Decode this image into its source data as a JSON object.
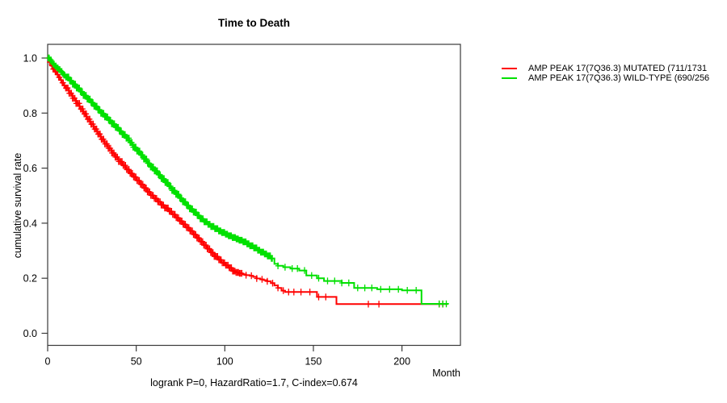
{
  "title": "Time to Death",
  "y_axis": {
    "label": "cumulative survival rate",
    "tick_labels": [
      "1.0",
      "0.8",
      "0.6",
      "0.4",
      "0.2",
      "0.0"
    ]
  },
  "x_axis": {
    "label": "Month",
    "tick_labels": [
      "0",
      "50",
      "100",
      "150",
      "200"
    ]
  },
  "footer": "logrank P=0, HazardRatio=1.7, C-index=0.674",
  "legend": {
    "items": [
      {
        "label": "AMP PEAK 17(7Q36.3) MUTATED (711/1731",
        "color": "#ff0000"
      },
      {
        "label": "AMP PEAK 17(7Q36.3) WILD-TYPE (690/256",
        "color": "#00e000"
      }
    ]
  },
  "colors": {
    "mutated": "#ff0000",
    "wild_type": "#00e000",
    "axis": "#3a3a3a"
  },
  "chart_data": {
    "type": "line",
    "subtype": "kaplan-meier-step",
    "title": "Time to Death",
    "xlabel": "Month",
    "ylabel": "cumulative survival rate",
    "xlim": [
      0,
      233
    ],
    "ylim": [
      0,
      1.0
    ],
    "x_ticks": [
      0,
      50,
      100,
      150,
      200
    ],
    "y_ticks": [
      1.0,
      0.8,
      0.6,
      0.4,
      0.2,
      0.0
    ],
    "grid": false,
    "legend_position": "outside-right",
    "annotation": "logrank P=0, HazardRatio=1.7, C-index=0.674",
    "series": [
      {
        "name": "AMP PEAK 17(7Q36.3) MUTATED (711/1731",
        "color": "#ff0000",
        "points": [
          [
            0,
            1.0
          ],
          [
            1,
            0.985
          ],
          [
            2,
            0.972
          ],
          [
            3,
            0.96
          ],
          [
            4,
            0.95
          ],
          [
            5,
            0.94
          ],
          [
            6,
            0.93
          ],
          [
            7,
            0.92
          ],
          [
            8,
            0.91
          ],
          [
            9,
            0.9
          ],
          [
            10,
            0.891
          ],
          [
            12,
            0.872
          ],
          [
            14,
            0.854
          ],
          [
            16,
            0.835
          ],
          [
            18,
            0.815
          ],
          [
            20,
            0.797
          ],
          [
            22,
            0.778
          ],
          [
            24,
            0.76
          ],
          [
            26,
            0.742
          ],
          [
            28,
            0.724
          ],
          [
            30,
            0.705
          ],
          [
            32,
            0.688
          ],
          [
            34,
            0.672
          ],
          [
            36,
            0.655
          ],
          [
            38,
            0.64
          ],
          [
            40,
            0.624
          ],
          [
            42,
            0.61
          ],
          [
            44,
            0.595
          ],
          [
            46,
            0.581
          ],
          [
            48,
            0.568
          ],
          [
            50,
            0.555
          ],
          [
            52,
            0.541
          ],
          [
            54,
            0.528
          ],
          [
            56,
            0.514
          ],
          [
            58,
            0.501
          ],
          [
            60,
            0.49
          ],
          [
            62,
            0.478
          ],
          [
            64,
            0.466
          ],
          [
            66,
            0.455
          ],
          [
            68,
            0.443
          ],
          [
            70,
            0.432
          ],
          [
            72,
            0.42
          ],
          [
            74,
            0.408
          ],
          [
            76,
            0.396
          ],
          [
            78,
            0.384
          ],
          [
            80,
            0.372
          ],
          [
            82,
            0.359
          ],
          [
            84,
            0.346
          ],
          [
            86,
            0.333
          ],
          [
            88,
            0.32
          ],
          [
            90,
            0.307
          ],
          [
            92,
            0.293
          ],
          [
            94,
            0.279
          ],
          [
            96,
            0.267
          ],
          [
            98,
            0.256
          ],
          [
            100,
            0.247
          ],
          [
            102,
            0.238
          ],
          [
            104,
            0.226
          ],
          [
            106,
            0.221
          ],
          [
            108,
            0.218
          ],
          [
            110,
            0.214
          ],
          [
            112,
            0.211
          ],
          [
            114,
            0.209
          ],
          [
            116,
            0.205
          ],
          [
            118,
            0.199
          ],
          [
            120,
            0.196
          ],
          [
            122,
            0.193
          ],
          [
            124,
            0.189
          ],
          [
            126,
            0.182
          ],
          [
            128,
            0.174
          ],
          [
            130,
            0.165
          ],
          [
            132,
            0.155
          ],
          [
            134,
            0.15
          ],
          [
            152,
            0.132
          ],
          [
            163,
            0.106
          ],
          [
            226,
            0.106
          ]
        ],
        "censor_months": [
          112,
          115,
          118,
          121,
          124,
          127,
          130,
          133,
          136,
          139,
          143,
          148,
          153,
          157,
          181,
          187,
          221,
          223
        ],
        "dense_censoring": {
          "start": 0.4,
          "end": 110,
          "step": 0.65
        }
      },
      {
        "name": "AMP PEAK 17(7Q36.3) WILD-TYPE (690/256",
        "color": "#00e000",
        "points": [
          [
            0,
            1.0
          ],
          [
            1,
            0.993
          ],
          [
            2,
            0.986
          ],
          [
            3,
            0.978
          ],
          [
            4,
            0.971
          ],
          [
            5,
            0.964
          ],
          [
            6,
            0.958
          ],
          [
            7,
            0.951
          ],
          [
            8,
            0.944
          ],
          [
            9,
            0.938
          ],
          [
            10,
            0.931
          ],
          [
            12,
            0.918
          ],
          [
            14,
            0.905
          ],
          [
            16,
            0.891
          ],
          [
            18,
            0.878
          ],
          [
            20,
            0.864
          ],
          [
            22,
            0.851
          ],
          [
            24,
            0.838
          ],
          [
            26,
            0.825
          ],
          [
            28,
            0.812
          ],
          [
            30,
            0.799
          ],
          [
            32,
            0.786
          ],
          [
            34,
            0.774
          ],
          [
            36,
            0.761
          ],
          [
            38,
            0.748
          ],
          [
            40,
            0.735
          ],
          [
            42,
            0.722
          ],
          [
            44,
            0.709
          ],
          [
            46,
            0.693
          ],
          [
            48,
            0.676
          ],
          [
            50,
            0.662
          ],
          [
            52,
            0.648
          ],
          [
            54,
            0.633
          ],
          [
            56,
            0.618
          ],
          [
            58,
            0.604
          ],
          [
            60,
            0.59
          ],
          [
            62,
            0.576
          ],
          [
            64,
            0.562
          ],
          [
            66,
            0.548
          ],
          [
            68,
            0.534
          ],
          [
            70,
            0.519
          ],
          [
            72,
            0.505
          ],
          [
            74,
            0.491
          ],
          [
            76,
            0.478
          ],
          [
            78,
            0.465
          ],
          [
            80,
            0.452
          ],
          [
            82,
            0.44
          ],
          [
            84,
            0.428
          ],
          [
            86,
            0.416
          ],
          [
            88,
            0.405
          ],
          [
            90,
            0.396
          ],
          [
            92,
            0.388
          ],
          [
            94,
            0.38
          ],
          [
            96,
            0.372
          ],
          [
            98,
            0.366
          ],
          [
            100,
            0.36
          ],
          [
            102,
            0.354
          ],
          [
            104,
            0.348
          ],
          [
            106,
            0.343
          ],
          [
            108,
            0.338
          ],
          [
            110,
            0.332
          ],
          [
            112,
            0.325
          ],
          [
            114,
            0.318
          ],
          [
            116,
            0.31
          ],
          [
            118,
            0.302
          ],
          [
            120,
            0.295
          ],
          [
            122,
            0.288
          ],
          [
            124,
            0.281
          ],
          [
            126,
            0.272
          ],
          [
            128,
            0.252
          ],
          [
            130,
            0.245
          ],
          [
            133,
            0.24
          ],
          [
            137,
            0.235
          ],
          [
            142,
            0.228
          ],
          [
            146,
            0.21
          ],
          [
            152,
            0.2
          ],
          [
            156,
            0.19
          ],
          [
            166,
            0.183
          ],
          [
            173,
            0.165
          ],
          [
            186,
            0.16
          ],
          [
            200,
            0.156
          ],
          [
            211,
            0.107
          ],
          [
            226,
            0.105
          ]
        ],
        "censor_months": [
          130,
          134,
          138,
          141,
          145,
          149,
          153,
          158,
          162,
          166,
          170,
          175,
          179,
          183,
          188,
          193,
          198,
          203,
          208,
          221,
          223,
          225
        ],
        "dense_censoring": {
          "start": 0.3,
          "end": 127,
          "step": 0.55
        }
      }
    ]
  }
}
